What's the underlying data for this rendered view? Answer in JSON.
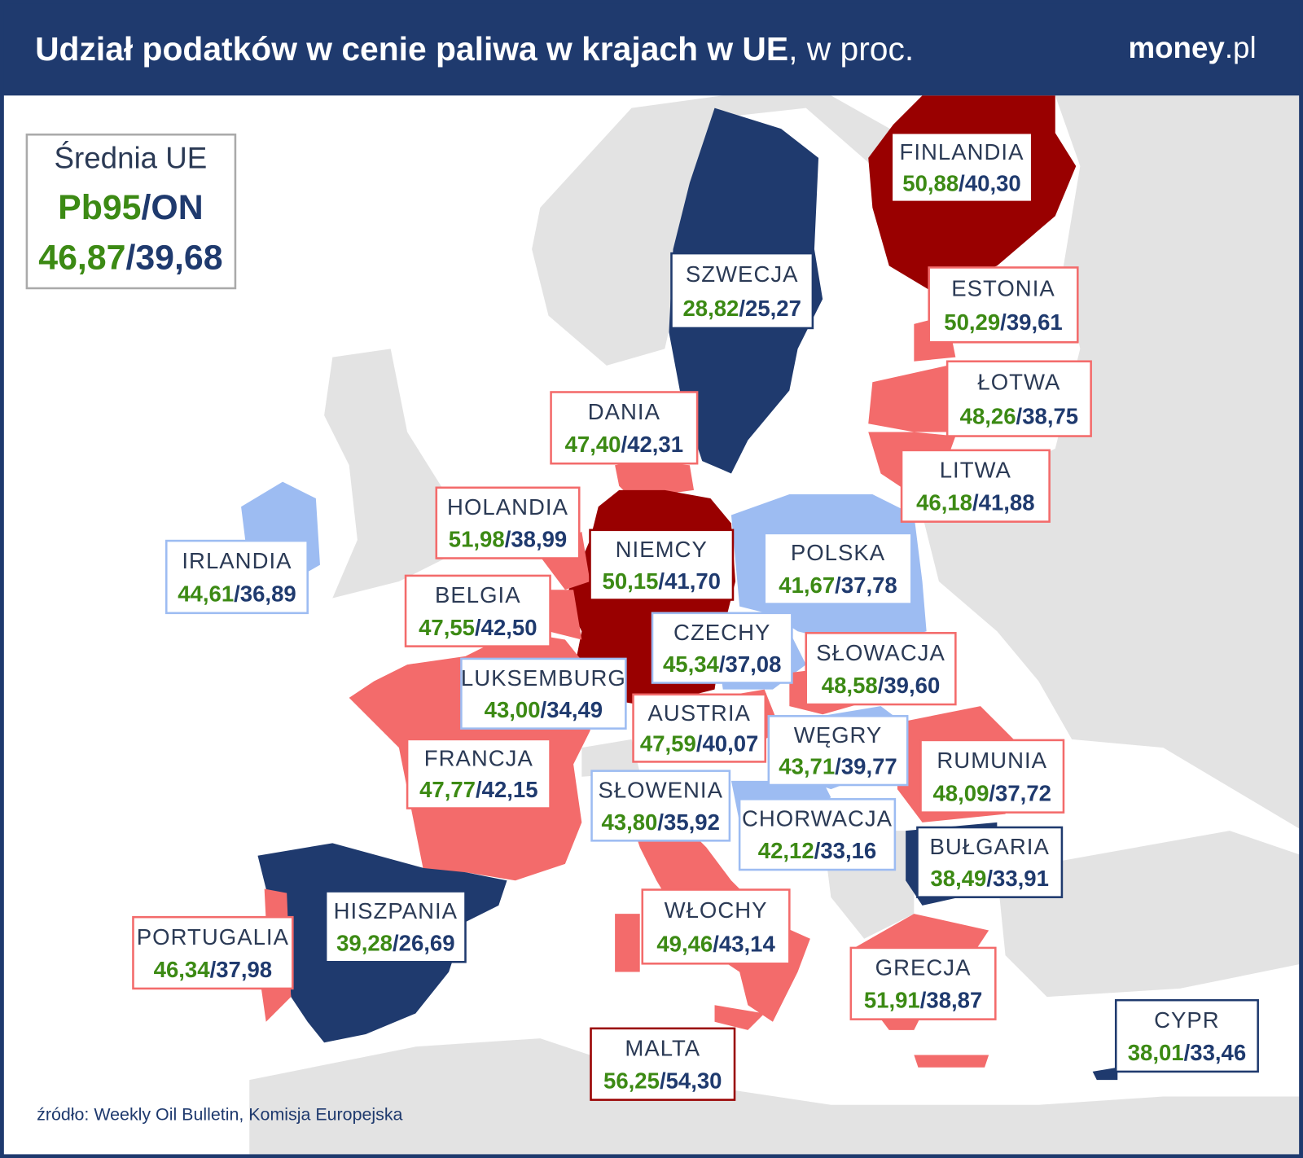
{
  "header": {
    "title": "Udział podatków w cenie paliwa w krajach w UE",
    "title_suffix": ", w proc.",
    "logo_main": "money",
    "logo_suffix": ".pl"
  },
  "separator": "/",
  "legend": {
    "title": "Średnia UE",
    "fuel_pb95": "Pb95",
    "fuel_on": "ON",
    "pb95": "46,87",
    "on": "39,68"
  },
  "countries": [
    {
      "name": "FINLANDIA",
      "pb95": "50,88",
      "on": "40,30",
      "color": "#990000"
    },
    {
      "name": "SZWECJA",
      "pb95": "28,82",
      "on": "25,27",
      "color": "#1f3a6e"
    },
    {
      "name": "ESTONIA",
      "pb95": "50,29",
      "on": "39,61",
      "color": "#f36b6b"
    },
    {
      "name": "ŁOTWA",
      "pb95": "48,26",
      "on": "38,75",
      "color": "#f36b6b"
    },
    {
      "name": "DANIA",
      "pb95": "47,40",
      "on": "42,31",
      "color": "#f36b6b"
    },
    {
      "name": "LITWA",
      "pb95": "46,18",
      "on": "41,88",
      "color": "#f36b6b"
    },
    {
      "name": "HOLANDIA",
      "pb95": "51,98",
      "on": "38,99",
      "color": "#f36b6b"
    },
    {
      "name": "IRLANDIA",
      "pb95": "44,61",
      "on": "36,89",
      "color": "#9dbcf2"
    },
    {
      "name": "NIEMCY",
      "pb95": "50,15",
      "on": "41,70",
      "color": "#990000"
    },
    {
      "name": "POLSKA",
      "pb95": "41,67",
      "on": "37,78",
      "color": "#9dbcf2"
    },
    {
      "name": "BELGIA",
      "pb95": "47,55",
      "on": "42,50",
      "color": "#f36b6b"
    },
    {
      "name": "CZECHY",
      "pb95": "45,34",
      "on": "37,08",
      "color": "#9dbcf2"
    },
    {
      "name": "SŁOWACJA",
      "pb95": "48,58",
      "on": "39,60",
      "color": "#f36b6b"
    },
    {
      "name": "LUKSEMBURG",
      "pb95": "43,00",
      "on": "34,49",
      "color": "#9dbcf2"
    },
    {
      "name": "AUSTRIA",
      "pb95": "47,59",
      "on": "40,07",
      "color": "#f36b6b"
    },
    {
      "name": "WĘGRY",
      "pb95": "43,71",
      "on": "39,77",
      "color": "#9dbcf2"
    },
    {
      "name": "FRANCJA",
      "pb95": "47,77",
      "on": "42,15",
      "color": "#f36b6b"
    },
    {
      "name": "RUMUNIA",
      "pb95": "48,09",
      "on": "37,72",
      "color": "#f36b6b"
    },
    {
      "name": "SŁOWENIA",
      "pb95": "43,80",
      "on": "35,92",
      "color": "#9dbcf2"
    },
    {
      "name": "CHORWACJA",
      "pb95": "42,12",
      "on": "33,16",
      "color": "#9dbcf2"
    },
    {
      "name": "BUŁGARIA",
      "pb95": "38,49",
      "on": "33,91",
      "color": "#1f3a6e"
    },
    {
      "name": "HISZPANIA",
      "pb95": "39,28",
      "on": "26,69",
      "color": "#1f3a6e"
    },
    {
      "name": "PORTUGALIA",
      "pb95": "46,34",
      "on": "37,98",
      "color": "#f36b6b"
    },
    {
      "name": "WŁOCHY",
      "pb95": "49,46",
      "on": "43,14",
      "color": "#f36b6b"
    },
    {
      "name": "GRECJA",
      "pb95": "51,91",
      "on": "38,87",
      "color": "#f36b6b"
    },
    {
      "name": "MALTA",
      "pb95": "56,25",
      "on": "54,30",
      "color": "#990000"
    },
    {
      "name": "CYPR",
      "pb95": "38,01",
      "on": "33,46",
      "color": "#1f3a6e"
    }
  ],
  "source": "źródło: Weekly Oil Bulletin, Komisja Europejska"
}
